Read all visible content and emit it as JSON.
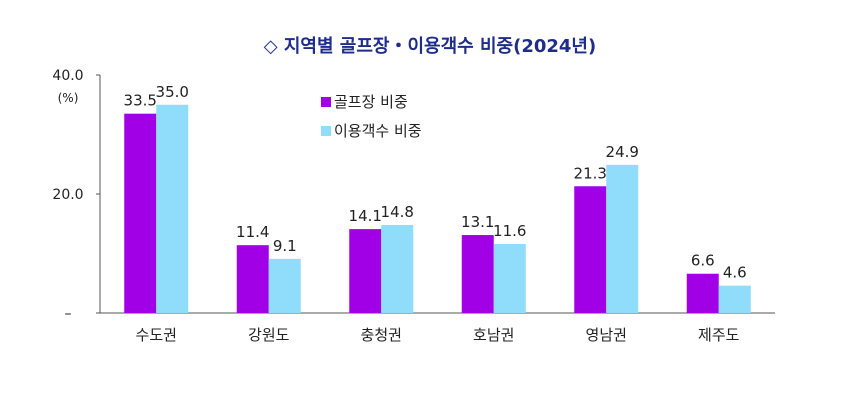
{
  "chart_data": {
    "type": "bar",
    "title": "◇ 지역별 골프장・이용객수 비중(2024년)",
    "unit": "(%)",
    "categories": [
      "수도권",
      "강원도",
      "충청권",
      "호남권",
      "영남권",
      "제주도"
    ],
    "series": [
      {
        "name": "골프장 비중",
        "color": "#a100e6",
        "values": [
          33.5,
          11.4,
          14.1,
          13.1,
          21.3,
          6.6
        ]
      },
      {
        "name": "이용객수 비중",
        "color": "#8fdcfb",
        "values": [
          35.0,
          9.1,
          14.8,
          11.6,
          24.9,
          4.6
        ]
      }
    ],
    "ylim": [
      0,
      40
    ],
    "yticks": [
      {
        "value": 40,
        "label": "40.0"
      },
      {
        "value": 20,
        "label": "20.0"
      },
      {
        "value": 0,
        "label": "–"
      }
    ],
    "grid": false,
    "legend_position": "top-center"
  }
}
